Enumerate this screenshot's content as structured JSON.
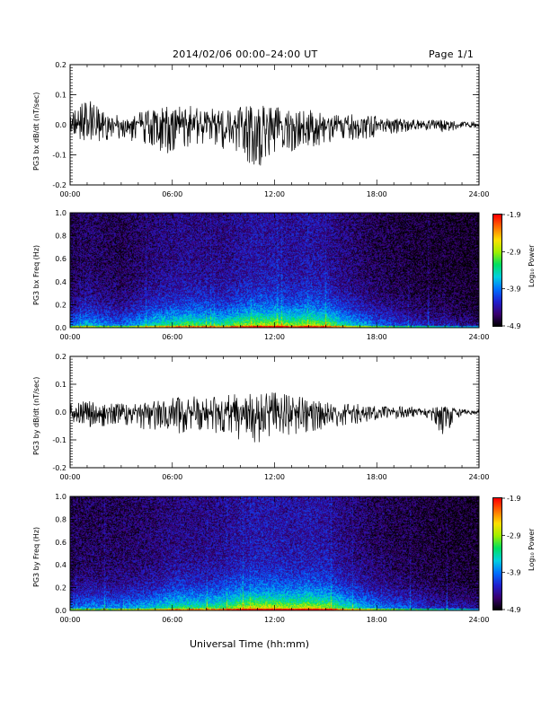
{
  "header": {
    "title": "2014/02/06  00:00–24:00 UT",
    "page": "Page 1/1"
  },
  "xlabel": "Universal Time (hh:mm)",
  "colorbar": {
    "label": "Log₁₀ Power",
    "ticks": [
      "-1.9",
      "-2.9",
      "-3.9",
      "-4.9"
    ],
    "colormap": [
      "#000000",
      "#3a0070",
      "#2020d0",
      "#0070ff",
      "#00d0e0",
      "#00e060",
      "#a0f000",
      "#ffe000",
      "#ff7000",
      "#ff0000"
    ]
  },
  "chart_data": [
    {
      "type": "line",
      "ylabel": "PG3 bx dB/dt (nT/sec)",
      "xlim": [
        "00:00",
        "24:00"
      ],
      "ylim": [
        -0.2,
        0.2
      ],
      "xticks": [
        "00:00",
        "06:00",
        "12:00",
        "18:00",
        "24:00"
      ],
      "yticks": [
        "0.2",
        "0.1",
        "0.0",
        "-0.1",
        "-0.2"
      ],
      "series": [
        {
          "envelope_hours": [
            0,
            1,
            2,
            3,
            4,
            5,
            6,
            7,
            8,
            9,
            10,
            11,
            12,
            13,
            14,
            15,
            16,
            17,
            18,
            19,
            20,
            21,
            22,
            23,
            24
          ],
          "envelope_max": [
            0.03,
            0.09,
            0.04,
            0.03,
            0.04,
            0.06,
            0.06,
            0.07,
            0.05,
            0.06,
            0.06,
            0.07,
            0.06,
            0.05,
            0.05,
            0.04,
            0.04,
            0.03,
            0.03,
            0.02,
            0.02,
            0.015,
            0.02,
            0.01,
            0.01
          ],
          "envelope_min": [
            -0.03,
            -0.07,
            -0.05,
            -0.05,
            -0.06,
            -0.08,
            -0.1,
            -0.07,
            -0.06,
            -0.08,
            -0.1,
            -0.15,
            -0.09,
            -0.09,
            -0.08,
            -0.06,
            -0.05,
            -0.05,
            -0.04,
            -0.03,
            -0.02,
            -0.02,
            -0.03,
            -0.01,
            -0.01
          ]
        }
      ]
    },
    {
      "type": "heatmap",
      "ylabel": "PG3 bx Freq (Hz)",
      "xlim": [
        "00:00",
        "24:00"
      ],
      "ylim": [
        0.0,
        1.0
      ],
      "xticks": [
        "00:00",
        "06:00",
        "12:00",
        "18:00",
        "24:00"
      ],
      "yticks": [
        "1.0",
        "0.8",
        "0.6",
        "0.4",
        "0.2",
        "0.0"
      ],
      "zrange": [
        -4.9,
        -1.9
      ],
      "activity_hours": [
        0,
        1,
        2,
        3,
        4,
        5,
        6,
        7,
        8,
        9,
        10,
        11,
        12,
        13,
        14,
        15,
        16,
        17,
        18,
        19,
        20,
        21,
        22,
        23,
        24
      ],
      "activity_level": [
        0.35,
        0.45,
        0.4,
        0.35,
        0.45,
        0.55,
        0.6,
        0.65,
        0.6,
        0.6,
        0.7,
        0.75,
        0.75,
        0.7,
        0.75,
        0.7,
        0.55,
        0.45,
        0.35,
        0.3,
        0.25,
        0.2,
        0.2,
        0.15,
        0.15
      ]
    },
    {
      "type": "line",
      "ylabel": "PG3 by dB/dt (nT/sec)",
      "xlim": [
        "00:00",
        "24:00"
      ],
      "ylim": [
        -0.2,
        0.2
      ],
      "xticks": [
        "00:00",
        "06:00",
        "12:00",
        "18:00",
        "24:00"
      ],
      "yticks": [
        "0.2",
        "0.1",
        "0.0",
        "-0.1",
        "-0.2"
      ],
      "series": [
        {
          "envelope_hours": [
            0,
            1,
            2,
            3,
            4,
            5,
            6,
            7,
            8,
            9,
            10,
            11,
            12,
            13,
            14,
            15,
            16,
            17,
            18,
            19,
            20,
            21,
            22,
            23,
            24
          ],
          "envelope_max": [
            0.03,
            0.04,
            0.03,
            0.03,
            0.03,
            0.04,
            0.05,
            0.06,
            0.05,
            0.06,
            0.07,
            0.07,
            0.07,
            0.06,
            0.05,
            0.04,
            0.03,
            0.03,
            0.02,
            0.02,
            0.02,
            0.015,
            0.02,
            0.01,
            0.01
          ],
          "envelope_min": [
            -0.03,
            -0.06,
            -0.05,
            -0.05,
            -0.06,
            -0.07,
            -0.08,
            -0.07,
            -0.07,
            -0.08,
            -0.1,
            -0.11,
            -0.09,
            -0.09,
            -0.07,
            -0.06,
            -0.05,
            -0.04,
            -0.03,
            -0.03,
            -0.02,
            -0.02,
            -0.09,
            -0.01,
            -0.01
          ]
        }
      ]
    },
    {
      "type": "heatmap",
      "ylabel": "PG3 by Freq (Hz)",
      "xlim": [
        "00:00",
        "24:00"
      ],
      "ylim": [
        0.0,
        1.0
      ],
      "xticks": [
        "00:00",
        "06:00",
        "12:00",
        "18:00",
        "24:00"
      ],
      "yticks": [
        "1.0",
        "0.8",
        "0.6",
        "0.4",
        "0.2",
        "0.0"
      ],
      "zrange": [
        -4.9,
        -1.9
      ],
      "activity_hours": [
        0,
        1,
        2,
        3,
        4,
        5,
        6,
        7,
        8,
        9,
        10,
        11,
        12,
        13,
        14,
        15,
        16,
        17,
        18,
        19,
        20,
        21,
        22,
        23,
        24
      ],
      "activity_level": [
        0.35,
        0.4,
        0.4,
        0.4,
        0.45,
        0.5,
        0.6,
        0.6,
        0.6,
        0.65,
        0.75,
        0.8,
        0.8,
        0.75,
        0.8,
        0.75,
        0.6,
        0.5,
        0.4,
        0.35,
        0.3,
        0.25,
        0.2,
        0.2,
        0.15
      ]
    }
  ]
}
